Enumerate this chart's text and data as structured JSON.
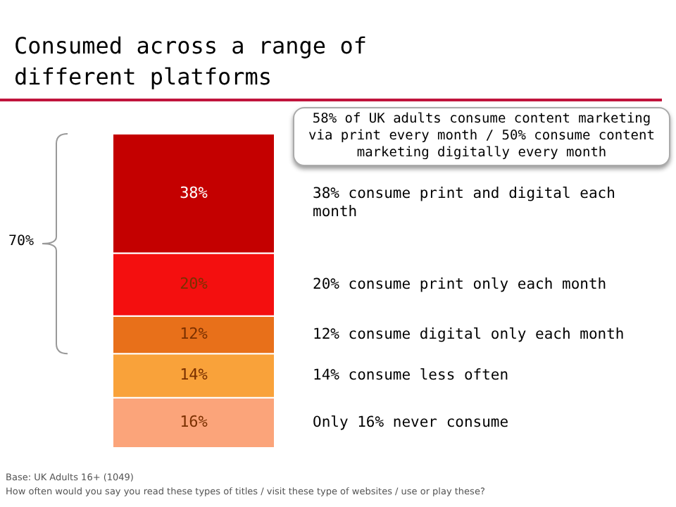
{
  "chart_data": {
    "type": "bar",
    "stacked": true,
    "title": "Consumed across a range of different platforms",
    "categories": [
      null
    ],
    "series": [
      {
        "name": "Only 16% never consume",
        "color": "#fba47a",
        "values": [
          16
        ],
        "value_labels": [
          "16%"
        ]
      },
      {
        "name": "14% consume less often",
        "color": "#f9a23a",
        "values": [
          14
        ],
        "value_labels": [
          "14%"
        ]
      },
      {
        "name": "12% consume digital only each month",
        "color": "#e8701a",
        "values": [
          12
        ],
        "value_labels": [
          "12%"
        ]
      },
      {
        "name": "20% consume print only each month",
        "color": "#f40f0f",
        "values": [
          20
        ],
        "value_labels": [
          "20%"
        ]
      },
      {
        "name": "38% consume print and digital each month",
        "color": "#c40000",
        "values": [
          38
        ],
        "value_labels": [
          "38%"
        ]
      }
    ],
    "annotations": [
      "58% of UK adults consume content marketing via print every month / 50% consume content marketing digitally every month",
      "70%",
      "Base: UK Adults 16+ (1049)",
      "How often would you say you read these types of titles / visit these type of websites / use or play these?"
    ]
  }
}
